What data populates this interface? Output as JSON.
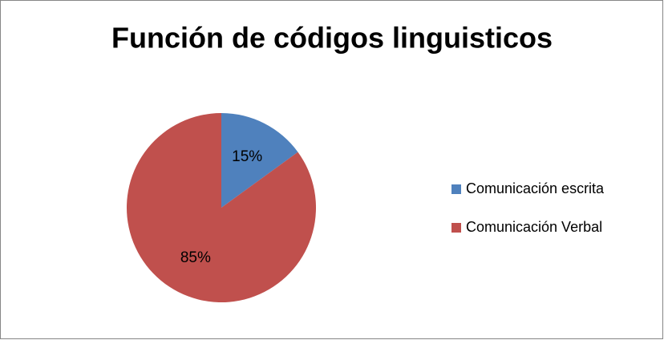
{
  "chart_data": {
    "type": "pie",
    "title": "Función de códigos linguisticos",
    "categories": [
      "Comunicación escrita",
      "Comunicación Verbal"
    ],
    "values": [
      15,
      85
    ],
    "value_labels": [
      "15%",
      "85%"
    ],
    "colors": [
      "#4f81bd",
      "#c0504d"
    ],
    "legend": "right"
  }
}
